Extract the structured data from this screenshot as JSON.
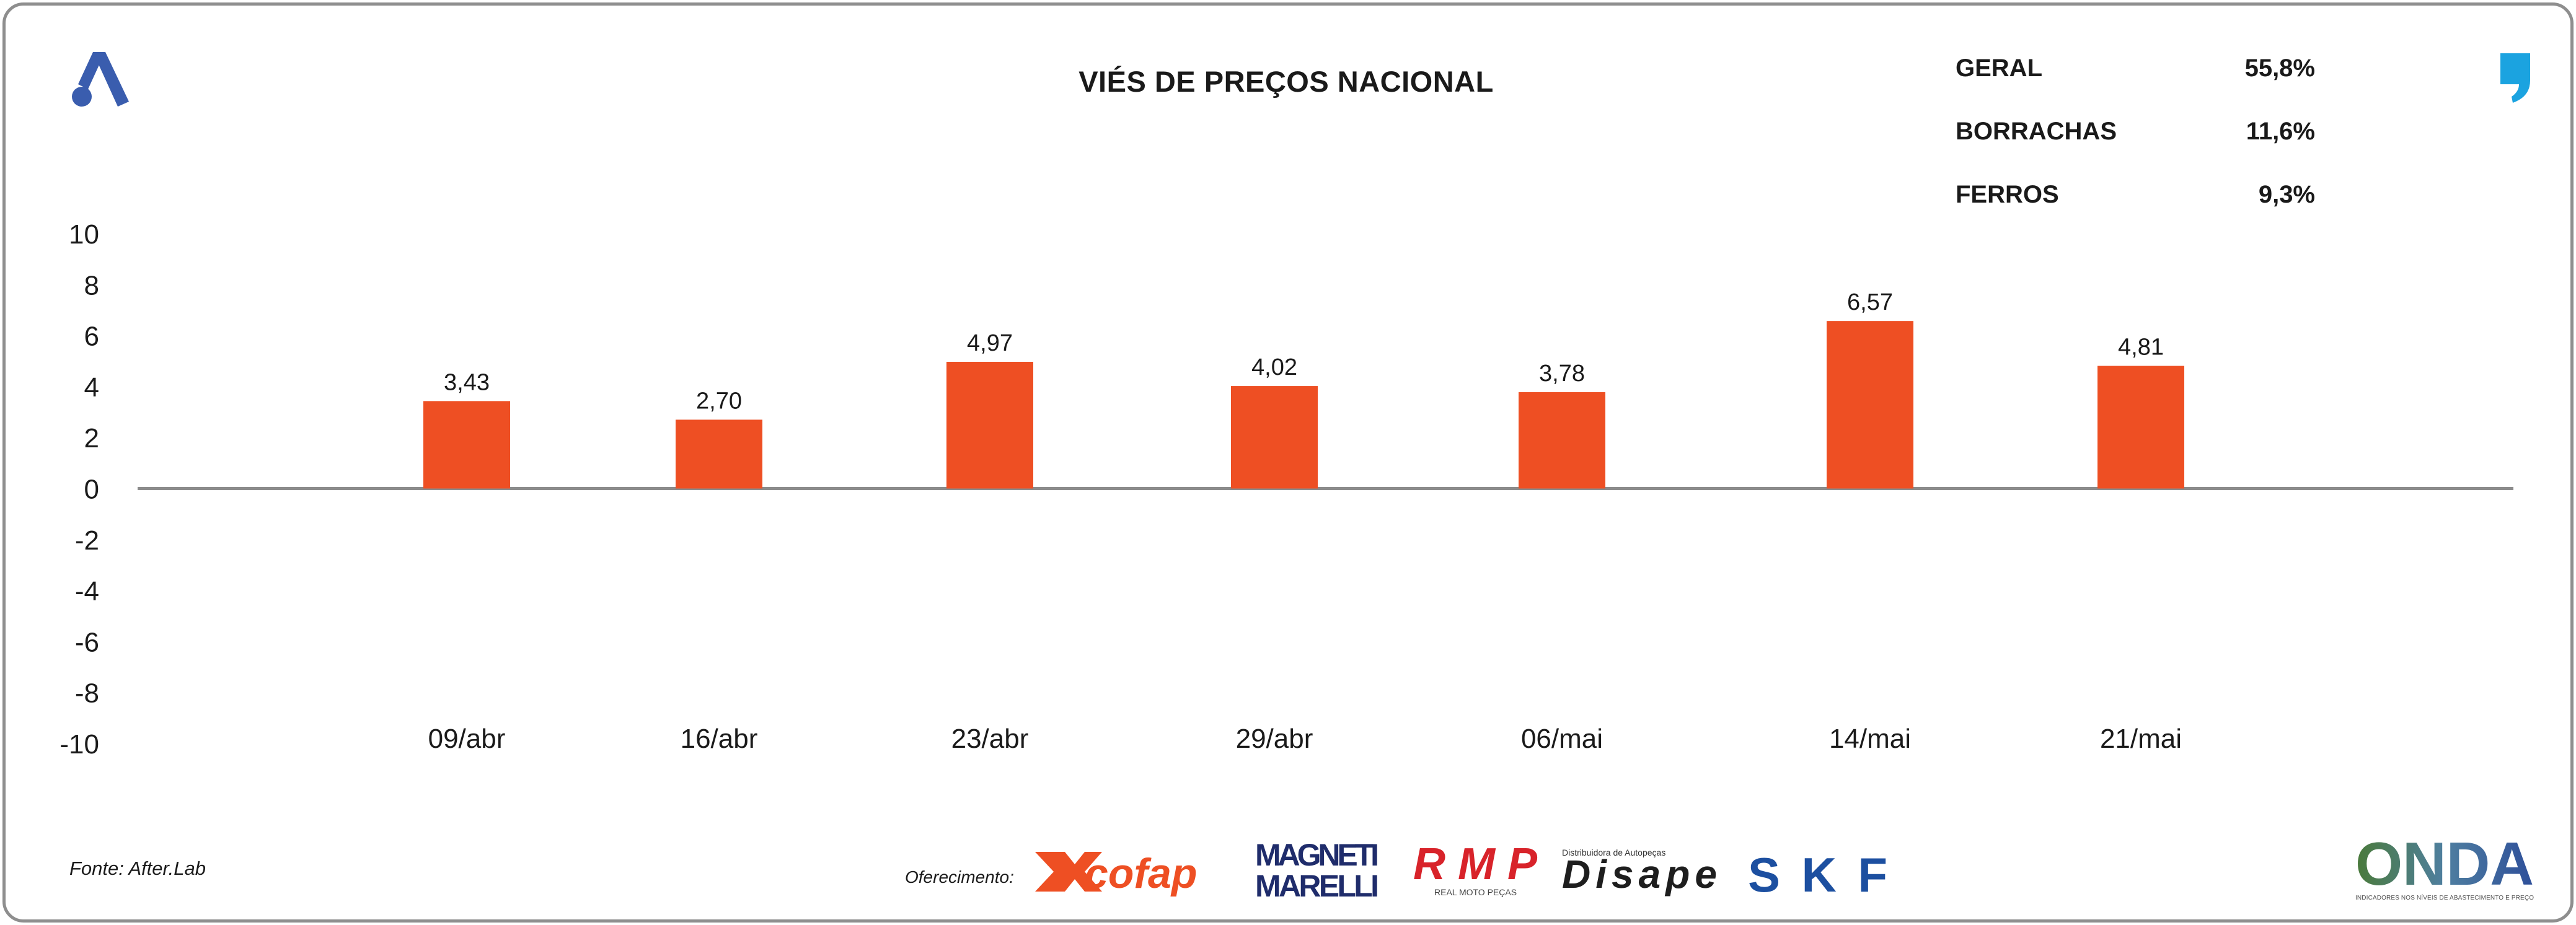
{
  "title": "VIÉS DE PREÇOS NACIONAL",
  "summary": [
    {
      "label": "GERAL",
      "value": "55,8%"
    },
    {
      "label": "BORRACHAS",
      "value": "11,6%"
    },
    {
      "label": "FERROS",
      "value": "9,3%"
    }
  ],
  "source": "Fonte: After.Lab",
  "sponsor_label": "Oferecimento:",
  "sponsors": {
    "cofap": "cofap",
    "magneti_line1": "MAGNETI",
    "magneti_line2": "MARELLI",
    "rmp": "RMP",
    "rmp_sub": "REAL MOTO PEÇAS",
    "disape": "Disape",
    "disape_sub": "Distribuidora de Autopeças",
    "skf": "SKF",
    "onda": "ONDA",
    "onda_sub": "INDICADORES NOS NÍVEIS DE ABASTECIMENTO E PREÇO"
  },
  "colors": {
    "bar": "#ee4f23",
    "axis": "#8c8c8c",
    "logo_blue": "#3a5dae",
    "quote_blue": "#1ba3e0",
    "frame": "#8e8e8e"
  },
  "icons": {
    "brand_logo": "a-logo-icon",
    "quote_logo": "quote-mark-icon"
  },
  "chart_data": {
    "type": "bar",
    "title": "VIÉS DE PREÇOS NACIONAL",
    "xlabel": "",
    "ylabel": "",
    "categories": [
      "09/abr",
      "16/abr",
      "23/abr",
      "29/abr",
      "06/mai",
      "14/mai",
      "21/mai"
    ],
    "values": [
      3.43,
      2.7,
      4.97,
      4.02,
      3.78,
      6.57,
      4.81
    ],
    "value_labels": [
      "3,43",
      "2,70",
      "4,97",
      "4,02",
      "3,78",
      "6,57",
      "4,81"
    ],
    "ylim": [
      -10,
      10
    ],
    "yticks": [
      10,
      8,
      6,
      4,
      2,
      0,
      -2,
      -4,
      -6,
      -8,
      -10
    ],
    "grid": false,
    "legend": "none"
  }
}
